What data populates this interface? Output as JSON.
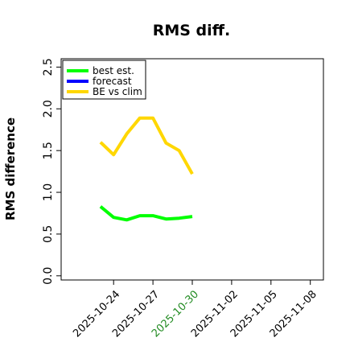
{
  "chart_data": {
    "type": "line",
    "title": "RMS diff.",
    "ylabel": "RMS difference",
    "ylim": [
      -0.05,
      2.6
    ],
    "yticks": [
      0.0,
      0.5,
      1.0,
      1.5,
      2.0,
      2.5
    ],
    "ytick_labels": [
      "0.0",
      "0.5",
      "1.0",
      "1.5",
      "2.0",
      "2.5"
    ],
    "xlim": [
      "2025-10-20",
      "2025-11-09"
    ],
    "xticks": [
      "2025-10-24",
      "2025-10-27",
      "2025-10-30",
      "2025-11-02",
      "2025-11-05",
      "2025-11-08"
    ],
    "xtick_labels": [
      "2025-10-24",
      "2025-10-27",
      "2025-10-30",
      "2025-11-02",
      "2025-11-05",
      "2025-11-08"
    ],
    "highlight_xtick": "2025-10-30",
    "highlight_color": "#228B22",
    "grid": false,
    "legend_position": "top-left",
    "series": [
      {
        "name": "best est.",
        "color": "#00ff00",
        "x": [
          "2025-10-23",
          "2025-10-24",
          "2025-10-25",
          "2025-10-26",
          "2025-10-27",
          "2025-10-28",
          "2025-10-29",
          "2025-10-30"
        ],
        "values": [
          0.83,
          0.7,
          0.67,
          0.72,
          0.72,
          0.68,
          0.69,
          0.71
        ]
      },
      {
        "name": "forecast",
        "color": "#0000ff",
        "x": [],
        "values": []
      },
      {
        "name": "BE vs clim",
        "color": "#ffd700",
        "x": [
          "2025-10-23",
          "2025-10-24",
          "2025-10-25",
          "2025-10-26",
          "2025-10-27",
          "2025-10-28",
          "2025-10-29",
          "2025-10-30"
        ],
        "values": [
          1.6,
          1.45,
          1.7,
          1.89,
          1.89,
          1.59,
          1.5,
          1.22
        ]
      }
    ]
  }
}
